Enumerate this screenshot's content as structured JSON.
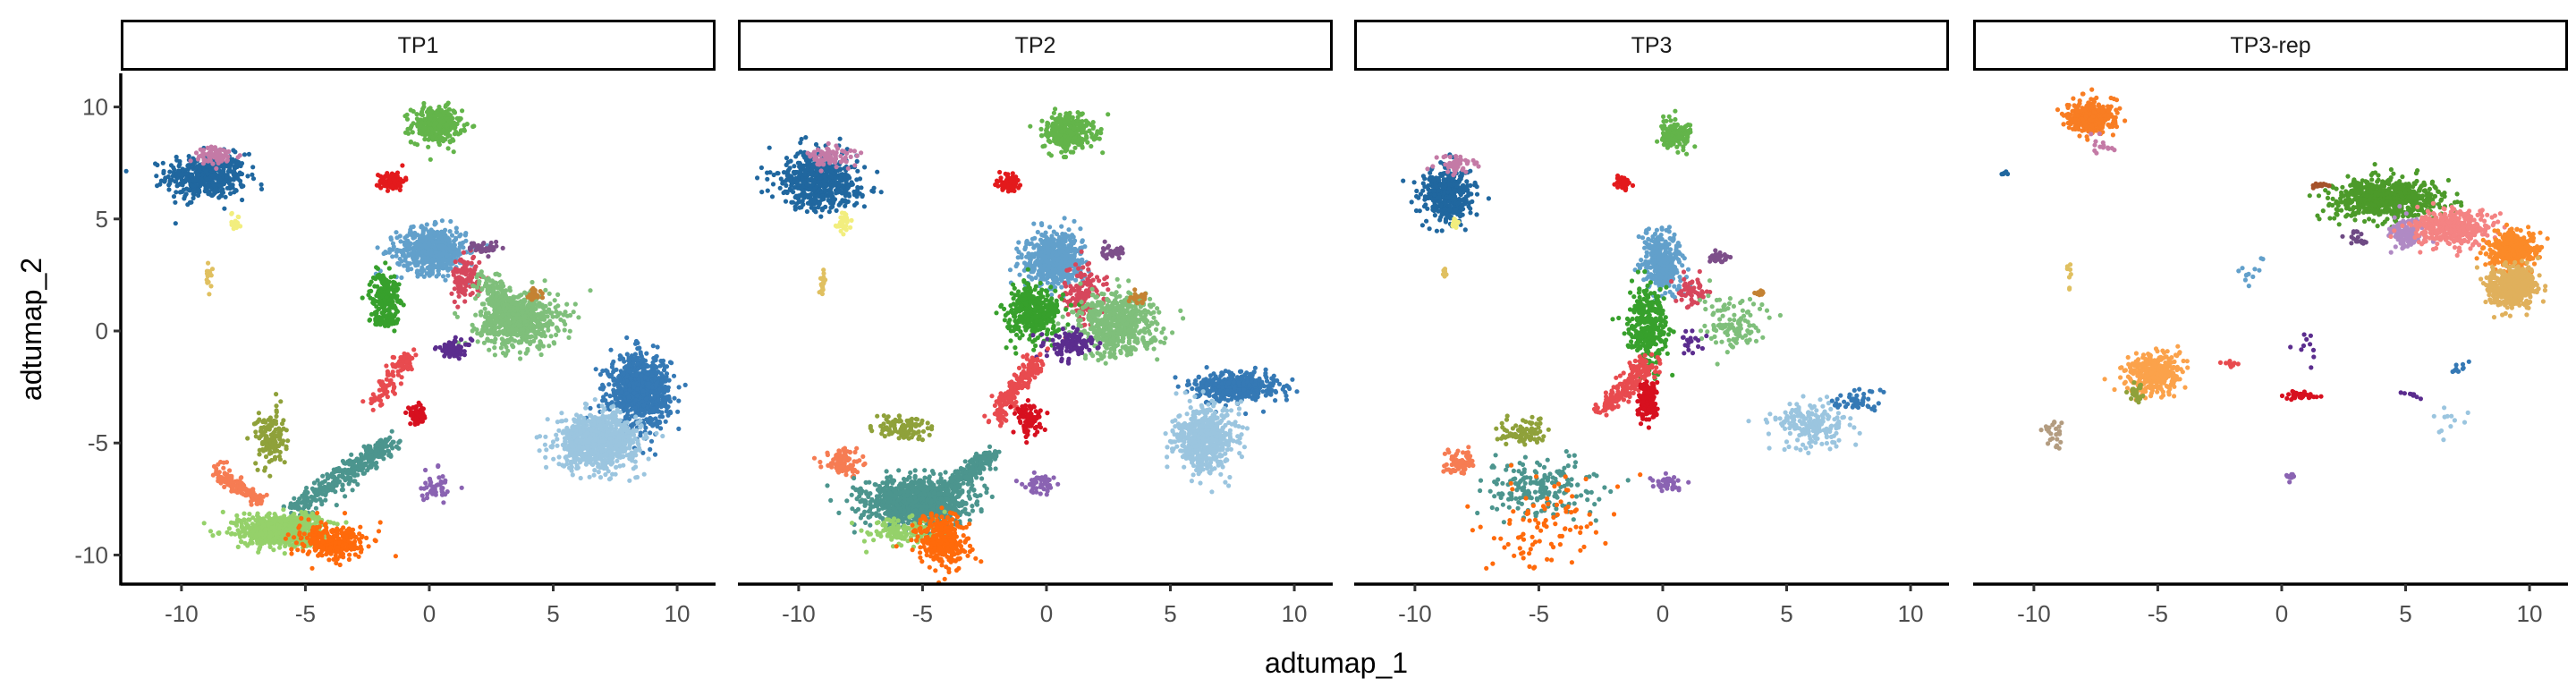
{
  "chart_data": {
    "type": "scatter",
    "title": "",
    "xlabel": "adtumap_1",
    "ylabel": "adtumap_2",
    "xlim": [
      -12.45,
      11.55
    ],
    "ylim": [
      -11.3,
      11.5
    ],
    "x_ticks": [
      -10,
      -5,
      0,
      5,
      10
    ],
    "y_ticks": [
      10,
      5,
      0,
      -5,
      -10
    ],
    "x_tick_labels": [
      "-10",
      "-5",
      "0",
      "5",
      "10"
    ],
    "y_tick_labels": [
      "10",
      "5",
      "0",
      "-5",
      "-10"
    ],
    "grid": false,
    "legend": "none",
    "facets": [
      {
        "label": "TP1",
        "clusters": [
          {
            "color": "#20679f",
            "x": -9.0,
            "y": 6.9,
            "sx": 0.8,
            "sy": 0.5,
            "n": 450
          },
          {
            "color": "#c47aa6",
            "x": -8.6,
            "y": 7.8,
            "sx": 0.5,
            "sy": 0.2,
            "n": 70
          },
          {
            "color": "#f2ee7e",
            "x": -7.8,
            "y": 4.9,
            "sx": 0.1,
            "sy": 0.2,
            "n": 18
          },
          {
            "color": "#e0c060",
            "x": -8.9,
            "y": 2.3,
            "sx": 0.05,
            "sy": 0.35,
            "n": 18
          },
          {
            "color": "#63b44a",
            "x": 0.3,
            "y": 9.2,
            "sx": 0.5,
            "sy": 0.4,
            "n": 300
          },
          {
            "color": "#e31a1c",
            "x": -1.5,
            "y": 6.7,
            "sx": 0.25,
            "sy": 0.2,
            "n": 100
          },
          {
            "color": "#62a0cb",
            "x": 0.1,
            "y": 3.6,
            "sx": 0.7,
            "sy": 0.5,
            "n": 550
          },
          {
            "color": "#d6475c",
            "x": 1.5,
            "y": 2.4,
            "sx": 0.3,
            "sy": 0.5,
            "n": 110
          },
          {
            "color": "#7d4f8a",
            "x": 2.2,
            "y": 3.7,
            "sx": 0.3,
            "sy": 0.15,
            "n": 35
          },
          {
            "color": "#37a02c",
            "x": -1.8,
            "y": 1.6,
            "sx": 0.3,
            "sy": 0.5,
            "n": 180
          },
          {
            "color": "#37a02c",
            "x": -1.8,
            "y": 0.4,
            "sx": 0.3,
            "sy": 0.15,
            "n": 50
          },
          {
            "color": "#7fbf7b",
            "x": 3.6,
            "y": 0.5,
            "sx": 0.8,
            "sy": 0.6,
            "n": 650
          },
          {
            "color": "#7fbf7b",
            "x": 2.3,
            "y": 2.2,
            "x2": 3.2,
            "y2": 1.0,
            "sx": 0.3,
            "sy": 0.3,
            "n": 120
          },
          {
            "color": "#c48233",
            "x": 4.2,
            "y": 1.6,
            "sx": 0.15,
            "sy": 0.15,
            "n": 30
          },
          {
            "color": "#5b2d8e",
            "x": 1.0,
            "y": -0.8,
            "sx": 0.35,
            "sy": 0.2,
            "n": 70
          },
          {
            "color": "#e84b4f",
            "x": -0.8,
            "y": -1.0,
            "x2": -2.2,
            "y2": -3.2,
            "sx": 0.2,
            "sy": 0.2,
            "n": 120
          },
          {
            "color": "#d7101f",
            "x": -0.5,
            "y": -3.8,
            "sx": 0.2,
            "sy": 0.2,
            "n": 60
          },
          {
            "color": "#3579b5",
            "x": 8.5,
            "y": -2.7,
            "sx": 0.6,
            "sy": 0.8,
            "n": 800
          },
          {
            "color": "#9bc5df",
            "x": 6.8,
            "y": -4.9,
            "sx": 0.8,
            "sy": 0.6,
            "n": 800
          },
          {
            "color": "#8fa13a",
            "x": -6.4,
            "y": -4.8,
            "sx": 0.3,
            "sy": 0.6,
            "n": 140
          },
          {
            "color": "#f67c53",
            "x": -8.6,
            "y": -6.2,
            "x2": -6.8,
            "y2": -7.6,
            "sx": 0.2,
            "sy": 0.2,
            "n": 120
          },
          {
            "color": "#4c958e",
            "x": -5.5,
            "y": -8.0,
            "x2": -1.5,
            "y2": -5.0,
            "sx": 0.25,
            "sy": 0.25,
            "n": 350
          },
          {
            "color": "#95d16a",
            "x": -6.0,
            "y": -8.9,
            "sx": 0.9,
            "sy": 0.35,
            "n": 700
          },
          {
            "color": "#ff6a0b",
            "x": -4.0,
            "y": -9.4,
            "sx": 0.7,
            "sy": 0.4,
            "n": 280
          },
          {
            "color": "#8a63b2",
            "x": 0.3,
            "y": -7.0,
            "sx": 0.3,
            "sy": 0.3,
            "n": 45
          }
        ]
      },
      {
        "label": "TP2",
        "clusters": [
          {
            "color": "#20679f",
            "x": -9.2,
            "y": 6.7,
            "sx": 0.8,
            "sy": 0.6,
            "n": 550
          },
          {
            "color": "#c47aa6",
            "x": -8.6,
            "y": 7.8,
            "sx": 0.5,
            "sy": 0.2,
            "n": 80
          },
          {
            "color": "#f2ee7e",
            "x": -8.2,
            "y": 4.8,
            "sx": 0.15,
            "sy": 0.25,
            "n": 35
          },
          {
            "color": "#e0c060",
            "x": -9.0,
            "y": 2.2,
            "sx": 0.05,
            "sy": 0.3,
            "n": 18
          },
          {
            "color": "#63b44a",
            "x": 0.9,
            "y": 8.9,
            "sx": 0.5,
            "sy": 0.4,
            "n": 320
          },
          {
            "color": "#e31a1c",
            "x": -1.5,
            "y": 6.6,
            "sx": 0.2,
            "sy": 0.2,
            "n": 75
          },
          {
            "color": "#62a0cb",
            "x": 0.3,
            "y": 3.2,
            "sx": 0.6,
            "sy": 0.6,
            "n": 550
          },
          {
            "color": "#d6475c",
            "x": 1.5,
            "y": 1.6,
            "sx": 0.4,
            "sy": 0.7,
            "n": 130
          },
          {
            "color": "#7d4f8a",
            "x": 2.6,
            "y": 3.5,
            "sx": 0.25,
            "sy": 0.15,
            "n": 35
          },
          {
            "color": "#37a02c",
            "x": -0.6,
            "y": 0.9,
            "sx": 0.5,
            "sy": 0.6,
            "n": 380
          },
          {
            "color": "#7fbf7b",
            "x": 2.9,
            "y": 0.3,
            "sx": 0.8,
            "sy": 0.7,
            "n": 550
          },
          {
            "color": "#c48233",
            "x": 3.7,
            "y": 1.5,
            "sx": 0.15,
            "sy": 0.15,
            "n": 25
          },
          {
            "color": "#5b2d8e",
            "x": 1.0,
            "y": -0.6,
            "sx": 0.5,
            "sy": 0.3,
            "n": 110
          },
          {
            "color": "#e84b4f",
            "x": -0.3,
            "y": -1.2,
            "x2": -2.1,
            "y2": -3.9,
            "sx": 0.2,
            "sy": 0.2,
            "n": 190
          },
          {
            "color": "#d7101f",
            "x": -0.7,
            "y": -3.9,
            "sx": 0.25,
            "sy": 0.35,
            "n": 90
          },
          {
            "color": "#3579b5",
            "x": 7.7,
            "y": -2.5,
            "sx": 0.8,
            "sy": 0.3,
            "n": 480
          },
          {
            "color": "#9bc5df",
            "x": 6.4,
            "y": -4.8,
            "sx": 0.6,
            "sy": 0.7,
            "n": 560
          },
          {
            "color": "#8fa13a",
            "x": -5.9,
            "y": -4.3,
            "sx": 0.5,
            "sy": 0.25,
            "n": 110
          },
          {
            "color": "#f67c53",
            "x": -8.2,
            "y": -5.9,
            "sx": 0.4,
            "sy": 0.3,
            "n": 100
          },
          {
            "color": "#4c958e",
            "x": -5.2,
            "y": -7.6,
            "sx": 1.0,
            "sy": 0.5,
            "n": 1100
          },
          {
            "color": "#4c958e",
            "x": -4.0,
            "y": -7.0,
            "x2": -2.2,
            "y2": -5.5,
            "sx": 0.2,
            "sy": 0.2,
            "n": 200
          },
          {
            "color": "#95d16a",
            "x": -5.8,
            "y": -9.0,
            "sx": 0.8,
            "sy": 0.3,
            "n": 140
          },
          {
            "color": "#ff6a0b",
            "x": -4.2,
            "y": -9.4,
            "sx": 0.5,
            "sy": 0.6,
            "n": 330
          },
          {
            "color": "#8a63b2",
            "x": -0.2,
            "y": -6.9,
            "sx": 0.4,
            "sy": 0.2,
            "n": 50
          }
        ]
      },
      {
        "label": "TP3",
        "clusters": [
          {
            "color": "#20679f",
            "x": -8.7,
            "y": 6.1,
            "sx": 0.5,
            "sy": 0.6,
            "n": 420
          },
          {
            "color": "#c47aa6",
            "x": -8.3,
            "y": 7.4,
            "sx": 0.4,
            "sy": 0.2,
            "n": 50
          },
          {
            "color": "#f2ee7e",
            "x": -8.4,
            "y": 4.8,
            "sx": 0.1,
            "sy": 0.15,
            "n": 15
          },
          {
            "color": "#e0c060",
            "x": -8.8,
            "y": 2.6,
            "sx": 0.05,
            "sy": 0.15,
            "n": 8
          },
          {
            "color": "#63b44a",
            "x": 0.5,
            "y": 8.8,
            "sx": 0.35,
            "sy": 0.3,
            "n": 140
          },
          {
            "color": "#e31a1c",
            "x": -1.6,
            "y": 6.6,
            "sx": 0.15,
            "sy": 0.15,
            "n": 35
          },
          {
            "color": "#62a0cb",
            "x": 0.0,
            "y": 3.0,
            "sx": 0.4,
            "sy": 0.7,
            "n": 330
          },
          {
            "color": "#d6475c",
            "x": 1.2,
            "y": 1.8,
            "sx": 0.3,
            "sy": 0.3,
            "n": 55
          },
          {
            "color": "#7d4f8a",
            "x": 2.3,
            "y": 3.3,
            "sx": 0.2,
            "sy": 0.12,
            "n": 28
          },
          {
            "color": "#37a02c",
            "x": -0.6,
            "y": 0.2,
            "sx": 0.4,
            "sy": 0.8,
            "n": 330
          },
          {
            "color": "#7fbf7b",
            "x": 2.8,
            "y": 0.3,
            "sx": 0.7,
            "sy": 0.6,
            "n": 115
          },
          {
            "color": "#c48233",
            "x": 3.9,
            "y": 1.7,
            "sx": 0.12,
            "sy": 0.05,
            "n": 10
          },
          {
            "color": "#5b2d8e",
            "x": 1.0,
            "y": -0.5,
            "sx": 0.4,
            "sy": 0.4,
            "n": 18
          },
          {
            "color": "#e84b4f",
            "x": -0.6,
            "y": -1.5,
            "x2": -2.4,
            "y2": -3.6,
            "sx": 0.25,
            "sy": 0.25,
            "n": 190
          },
          {
            "color": "#d7101f",
            "x": -0.6,
            "y": -3.1,
            "sx": 0.2,
            "sy": 0.45,
            "n": 140
          },
          {
            "color": "#9bc5df",
            "x": 6.0,
            "y": -4.2,
            "sx": 0.7,
            "sy": 0.5,
            "n": 190
          },
          {
            "color": "#3579b5",
            "x": 8.0,
            "y": -3.1,
            "sx": 0.6,
            "sy": 0.3,
            "n": 45
          },
          {
            "color": "#8fa13a",
            "x": -5.6,
            "y": -4.5,
            "sx": 0.5,
            "sy": 0.3,
            "n": 75
          },
          {
            "color": "#f67c53",
            "x": -8.2,
            "y": -5.9,
            "sx": 0.3,
            "sy": 0.3,
            "n": 75
          },
          {
            "color": "#4c958e",
            "x": -5.0,
            "y": -7.0,
            "sx": 1.2,
            "sy": 0.7,
            "n": 190
          },
          {
            "color": "#ff6a0b",
            "x": -4.5,
            "y": -8.5,
            "sx": 1.3,
            "sy": 1.0,
            "n": 95
          },
          {
            "color": "#8a63b2",
            "x": 0.2,
            "y": -6.8,
            "sx": 0.3,
            "sy": 0.2,
            "n": 40
          }
        ]
      },
      {
        "label": "TP3-rep",
        "clusters": [
          {
            "color": "#f87d23",
            "x": -7.7,
            "y": 9.6,
            "sx": 0.45,
            "sy": 0.35,
            "n": 380
          },
          {
            "color": "#c47aa6",
            "x": -7.3,
            "y": 8.2,
            "sx": 0.3,
            "sy": 0.3,
            "n": 15
          },
          {
            "color": "#20679f",
            "x": -11.3,
            "y": 7.0,
            "sx": 0.1,
            "sy": 0.05,
            "n": 5
          },
          {
            "color": "#e0c060",
            "x": -8.6,
            "y": 2.6,
            "sx": 0.05,
            "sy": 0.3,
            "n": 8
          },
          {
            "color": "#4c9a2a",
            "x": 4.3,
            "y": 5.9,
            "sx": 1.1,
            "sy": 0.45,
            "n": 650
          },
          {
            "color": "#a5522a",
            "x": 1.5,
            "y": 6.5,
            "sx": 0.2,
            "sy": 0.05,
            "n": 18
          },
          {
            "color": "#b08ac4",
            "x": 5.0,
            "y": 4.3,
            "sx": 0.35,
            "sy": 0.3,
            "n": 140
          },
          {
            "color": "#f48383",
            "x": 6.9,
            "y": 4.6,
            "sx": 0.8,
            "sy": 0.4,
            "n": 380
          },
          {
            "color": "#fb8a28",
            "x": 9.3,
            "y": 3.6,
            "sx": 0.5,
            "sy": 0.4,
            "n": 380
          },
          {
            "color": "#e0b05c",
            "x": 9.3,
            "y": 2.0,
            "sx": 0.5,
            "sy": 0.45,
            "n": 450
          },
          {
            "color": "#6e4a84",
            "x": 3.0,
            "y": 4.2,
            "sx": 0.2,
            "sy": 0.2,
            "n": 18
          },
          {
            "color": "#62a0cb",
            "x": -1.3,
            "y": 2.8,
            "sx": 0.3,
            "sy": 0.5,
            "n": 12
          },
          {
            "color": "#fba24b",
            "x": -5.2,
            "y": -1.9,
            "sx": 0.55,
            "sy": 0.45,
            "n": 330
          },
          {
            "color": "#8fa13a",
            "x": -5.9,
            "y": -2.8,
            "sx": 0.15,
            "sy": 0.2,
            "n": 25
          },
          {
            "color": "#b39c80",
            "x": -9.2,
            "y": -4.7,
            "sx": 0.2,
            "sy": 0.3,
            "n": 25
          },
          {
            "color": "#d7101f",
            "x": 0.7,
            "y": -2.9,
            "sx": 0.3,
            "sy": 0.1,
            "n": 40
          },
          {
            "color": "#e84b4f",
            "x": -2.1,
            "y": -1.5,
            "sx": 0.15,
            "sy": 0.1,
            "n": 10
          },
          {
            "color": "#8a63b2",
            "x": 0.4,
            "y": -6.5,
            "sx": 0.12,
            "sy": 0.1,
            "n": 15
          },
          {
            "color": "#5b2d8e",
            "x": 1.0,
            "y": -0.4,
            "sx": 0.3,
            "sy": 0.3,
            "n": 10
          },
          {
            "color": "#5b2d8e",
            "x": 4.8,
            "y": -2.7,
            "x2": 5.6,
            "y2": -3.0,
            "sx": 0.05,
            "sy": 0.05,
            "n": 8
          },
          {
            "color": "#9bc5df",
            "x": 6.5,
            "y": -4.0,
            "sx": 0.6,
            "sy": 0.4,
            "n": 12
          },
          {
            "color": "#3579b5",
            "x": 7.2,
            "y": -1.6,
            "sx": 0.3,
            "sy": 0.15,
            "n": 10
          }
        ]
      }
    ]
  }
}
